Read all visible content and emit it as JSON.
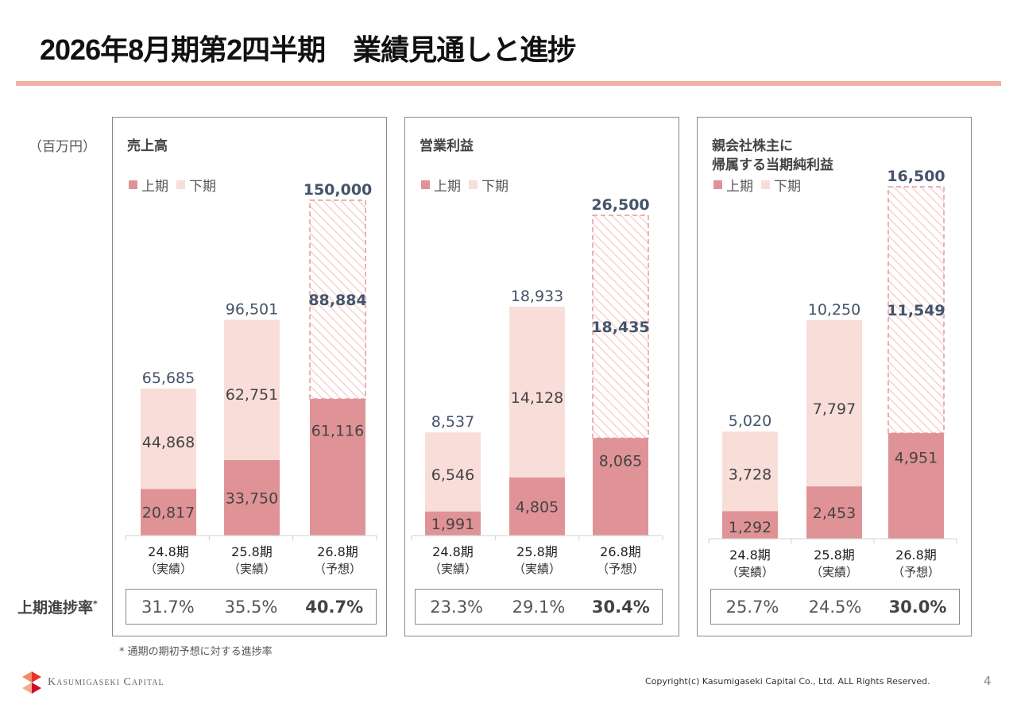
{
  "header": {
    "title": "2026年8月期第2四半期　業績見通しと進捗"
  },
  "unit_label": "（百万円）",
  "rate_row_label": "上期進捗率",
  "rate_row_mark": "*",
  "footnote": "* 通期の期初予想に対する進捗率",
  "colors": {
    "first_half": "#e09396",
    "second_half": "#f8ddd8",
    "forecast_dash": "#e39a9c",
    "hatch": "#f6d2cf",
    "total_label": "#44546a",
    "title_rule": "#f0b0a6"
  },
  "legend": {
    "first_half": "上期",
    "second_half": "下期"
  },
  "footer": {
    "company": "Kasumigaseki Capital",
    "copyright": "Copyright(c) Kasumigaseki Capital Co., Ltd. ALL Rights Reserved.",
    "page_number": "4"
  },
  "chart_data": [
    {
      "type": "bar",
      "stacked": true,
      "title": "売上高",
      "unit": "百万円",
      "categories": [
        "24.8期\n（実績）",
        "25.8期\n（実績）",
        "26.8期\n（予想）"
      ],
      "category_year": [
        "24.8期",
        "25.8期",
        "26.8期"
      ],
      "category_kind": [
        "（実績）",
        "（実績）",
        "（予想）"
      ],
      "series": [
        {
          "name": "上期",
          "values": [
            20817,
            33750,
            61116
          ]
        },
        {
          "name": "下期",
          "values": [
            44868,
            62751,
            88884
          ]
        }
      ],
      "totals": [
        65685,
        96501,
        150000
      ],
      "forecast_index": 2,
      "ylim": [
        0,
        150000
      ],
      "legend": "top-left",
      "first_half_progress": [
        "31.7%",
        "35.5%",
        "40.7%"
      ]
    },
    {
      "type": "bar",
      "stacked": true,
      "title": "営業利益",
      "unit": "百万円",
      "categories": [
        "24.8期\n（実績）",
        "25.8期\n（実績）",
        "26.8期\n（予想）"
      ],
      "category_year": [
        "24.8期",
        "25.8期",
        "26.8期"
      ],
      "category_kind": [
        "（実績）",
        "（実績）",
        "（予想）"
      ],
      "series": [
        {
          "name": "上期",
          "values": [
            1991,
            4805,
            8065
          ]
        },
        {
          "name": "下期",
          "values": [
            6546,
            14128,
            18435
          ]
        }
      ],
      "totals": [
        8537,
        18933,
        26500
      ],
      "forecast_index": 2,
      "ylim": [
        0,
        26500
      ],
      "legend": "top-left",
      "first_half_progress": [
        "23.3%",
        "29.1%",
        "30.4%"
      ]
    },
    {
      "type": "bar",
      "stacked": true,
      "title": "親会社株主に\n帰属する当期純利益",
      "title_lines": [
        "親会社株主に",
        "帰属する当期純利益"
      ],
      "unit": "百万円",
      "categories": [
        "24.8期\n（実績）",
        "25.8期\n（実績）",
        "26.8期\n（予想）"
      ],
      "category_year": [
        "24.8期",
        "25.8期",
        "26.8期"
      ],
      "category_kind": [
        "（実績）",
        "（実績）",
        "（予想）"
      ],
      "series": [
        {
          "name": "上期",
          "values": [
            1292,
            2453,
            4951
          ]
        },
        {
          "name": "下期",
          "values": [
            3728,
            7797,
            11549
          ]
        }
      ],
      "totals": [
        5020,
        10250,
        16500
      ],
      "forecast_index": 2,
      "ylim": [
        0,
        16500
      ],
      "legend": "top-left",
      "first_half_progress": [
        "25.7%",
        "24.5%",
        "30.0%"
      ]
    }
  ]
}
